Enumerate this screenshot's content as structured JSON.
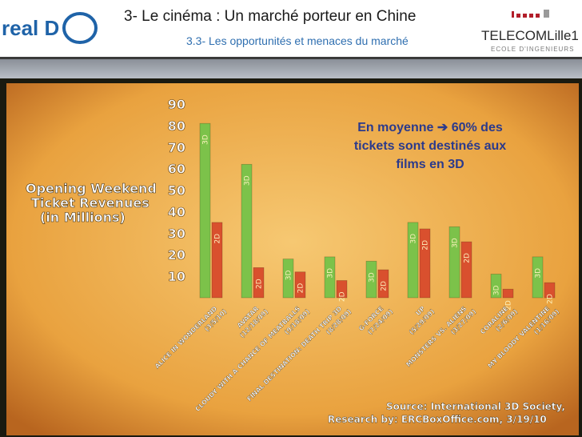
{
  "header": {
    "title": "3- Le cinéma : Un marché porteur en Chine",
    "subtitle": "3.3- Les opportunités  et menaces du marché",
    "logo_left_text": "real D",
    "logo_right_text": "TELECOMLille1",
    "logo_right_tagline": "ECOLE D'INGENIEURS"
  },
  "callout": {
    "line1_a": "En moyenne",
    "arrow": "➔",
    "line1_b": "60% des",
    "line2": "tickets sont destinés aux",
    "line3": "films en 3D"
  },
  "colors": {
    "bar_3d": "#7cc24a",
    "bar_2d": "#d9502e",
    "background": "#e8a23c",
    "callout_text": "#2b3a8c",
    "header_subtitle": "#2f6fb0"
  },
  "chart_data": {
    "type": "bar",
    "title": "Opening Weekend Ticket Revenues (in Millions)",
    "ylim": [
      0,
      90
    ],
    "yticks": [
      10,
      20,
      30,
      40,
      50,
      60,
      70,
      80,
      90
    ],
    "categories": [
      {
        "name": "ALICE IN WONDERLAND",
        "date": "(3/5/10)"
      },
      {
        "name": "AVATAR",
        "date": "(12/18/09)"
      },
      {
        "name": "CLOUDY WITH A CHANCE OF MEATBALLS",
        "date": "(9/18/09)"
      },
      {
        "name": "FINAL DESTINATION: DEATH TRIP 3D",
        "date": "(8/28/09)"
      },
      {
        "name": "G-FORCE",
        "date": "(7/24/09)"
      },
      {
        "name": "UP",
        "date": "(5/29/09)"
      },
      {
        "name": "MONSTERS VS. ALIENS",
        "date": "(3/27/09)"
      },
      {
        "name": "CORALINE",
        "date": "(2/6/09)"
      },
      {
        "name": "MY BLOODY VALENTINE",
        "date": "(1/16/09)"
      }
    ],
    "series": [
      {
        "name": "3D",
        "values": [
          81,
          62,
          18,
          19,
          17,
          35,
          33,
          11,
          19
        ]
      },
      {
        "name": "2D",
        "values": [
          35,
          14,
          12,
          8,
          13,
          32,
          26,
          4,
          7
        ]
      }
    ],
    "source_line1": "Source: International 3D Society,",
    "source_line2": "Research by: ERCBoxOffice.com, 3/19/10"
  }
}
